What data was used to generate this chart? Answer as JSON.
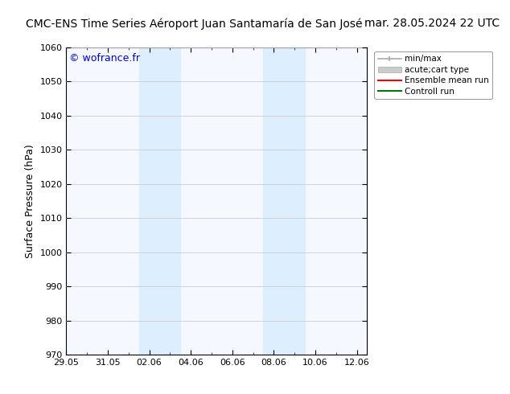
{
  "title_left": "CMC-ENS Time Series Aéroport Juan Santamaría de San José",
  "title_right": "mar. 28.05.2024 22 UTC",
  "ylabel": "Surface Pressure (hPa)",
  "watermark": "© wofrance.fr",
  "watermark_color": "#0000cc",
  "ylim": [
    970,
    1060
  ],
  "yticks": [
    970,
    980,
    990,
    1000,
    1010,
    1020,
    1030,
    1040,
    1050,
    1060
  ],
  "xtick_labels": [
    "29.05",
    "31.05",
    "02.06",
    "04.06",
    "06.06",
    "08.06",
    "10.06",
    "12.06"
  ],
  "xtick_positions_days": [
    0,
    2,
    4,
    6,
    8,
    10,
    12,
    14
  ],
  "xlim": [
    0,
    14.5
  ],
  "shaded_regions": [
    {
      "start_day": 3.5,
      "end_day": 5.5
    },
    {
      "start_day": 9.5,
      "end_day": 11.5
    }
  ],
  "shaded_color": "#ddeeff",
  "bg_color": "#ffffff",
  "plot_bg_color": "#f5f9ff",
  "grid_color": "#cccccc",
  "legend_items": [
    {
      "label": "min/max",
      "color": "#aaaaaa"
    },
    {
      "label": "acute;cart type",
      "color": "#cccccc"
    },
    {
      "label": "Ensemble mean run",
      "color": "#ff0000"
    },
    {
      "label": "Controll run",
      "color": "#007700"
    }
  ],
  "title_fontsize": 10,
  "axis_label_fontsize": 9,
  "tick_fontsize": 8,
  "legend_fontsize": 7.5,
  "watermark_fontsize": 9
}
